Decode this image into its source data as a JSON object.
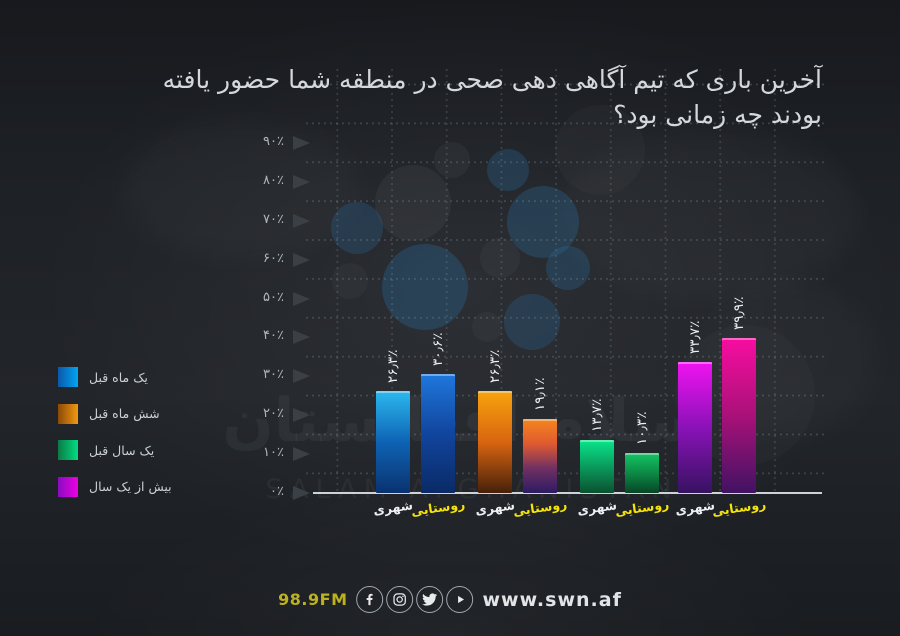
{
  "title": {
    "line1": "آخرین باری که تیم آگاهی دهی صحی در منطقه شما حضور یافته",
    "line2": "بودند چه زمانی بود؟"
  },
  "legend": {
    "items": [
      {
        "label": "یک ماه قبل",
        "from": "#0b57a8",
        "to": "#00a6f2"
      },
      {
        "label": "شش ماه قبل",
        "from": "#8a4a08",
        "to": "#f29711"
      },
      {
        "label": "یک سال قبل",
        "from": "#0c7a46",
        "to": "#00dd80"
      },
      {
        "label": "بیش از یک سال",
        "from": "#8a0bbf",
        "to": "#ee00e4"
      }
    ]
  },
  "chart_data": {
    "type": "bar",
    "title": "آخرین باری که تیم آگاهی دهی صحی در منطقه شما حضور یافته بودند چه زمانی بود؟",
    "ylim": [
      0,
      90
    ],
    "grid": "dotted",
    "yticks": [
      {
        "value": 0,
        "label": "۰٪"
      },
      {
        "value": 10,
        "label": "۱۰٪"
      },
      {
        "value": 20,
        "label": "۲۰٪"
      },
      {
        "value": 30,
        "label": "۳۰٪"
      },
      {
        "value": 40,
        "label": "۴۰٪"
      },
      {
        "value": 50,
        "label": "۵۰٪"
      },
      {
        "value": 60,
        "label": "۶۰٪"
      },
      {
        "value": 70,
        "label": "۷۰٪"
      },
      {
        "value": 80,
        "label": "۸۰٪"
      },
      {
        "value": 90,
        "label": "۹۰٪"
      }
    ],
    "category_colors": {
      "شهری": "#eef0f2",
      "روستایی": "#f6e40a"
    },
    "groups": [
      {
        "name": "یک ماه قبل",
        "bars": [
          {
            "category": "شهری",
            "value": 26.3,
            "label": "۲۶٫۳٪",
            "gradient": [
              "#2cb9ef",
              "#0e63b4",
              "#0a3270"
            ]
          },
          {
            "category": "روستایی",
            "value": 30.6,
            "label": "۳۰٫۶٪",
            "gradient": [
              "#1f78dc",
              "#11459e",
              "#0a2a66"
            ]
          }
        ]
      },
      {
        "name": "شش ماه قبل",
        "bars": [
          {
            "category": "شهری",
            "value": 26.3,
            "label": "۲۶٫۳٪",
            "gradient": [
              "#f7a30d",
              "#d96510",
              "#46200a"
            ]
          },
          {
            "category": "روستایی",
            "value": 19.1,
            "label": "۱۹٫۱٪",
            "gradient": [
              "#f4861e",
              "#e05a30",
              "#703063",
              "#2c1b63"
            ]
          }
        ]
      },
      {
        "name": "یک سال قبل",
        "bars": [
          {
            "category": "شهری",
            "value": 13.7,
            "label": "۱۳٫۷٪",
            "gradient": [
              "#0ae58b",
              "#0a9b5c",
              "#0a5130"
            ]
          },
          {
            "category": "روستایی",
            "value": 10.3,
            "label": "۱۰٫۳٪",
            "gradient": [
              "#14c565",
              "#0c8a46",
              "#074527"
            ]
          }
        ]
      },
      {
        "name": "بیش از یک سال",
        "bars": [
          {
            "category": "شهری",
            "value": 33.7,
            "label": "۳۳٫۷٪",
            "gradient": [
              "#f013f0",
              "#8a12b8",
              "#371261"
            ]
          },
          {
            "category": "روستایی",
            "value": 39.9,
            "label": "۳۹٫۹٪",
            "gradient": [
              "#f80da0",
              "#a91179",
              "#411263"
            ]
          }
        ]
      }
    ]
  },
  "watermark": {
    "fa": "سلام افغانستان",
    "en": "SALAM AFGHANISTAN"
  },
  "footer": {
    "station": "98.9FM",
    "website": "www.swn.af",
    "icons": [
      "facebook-icon",
      "instagram-icon",
      "twitter-icon",
      "play-icon"
    ]
  }
}
